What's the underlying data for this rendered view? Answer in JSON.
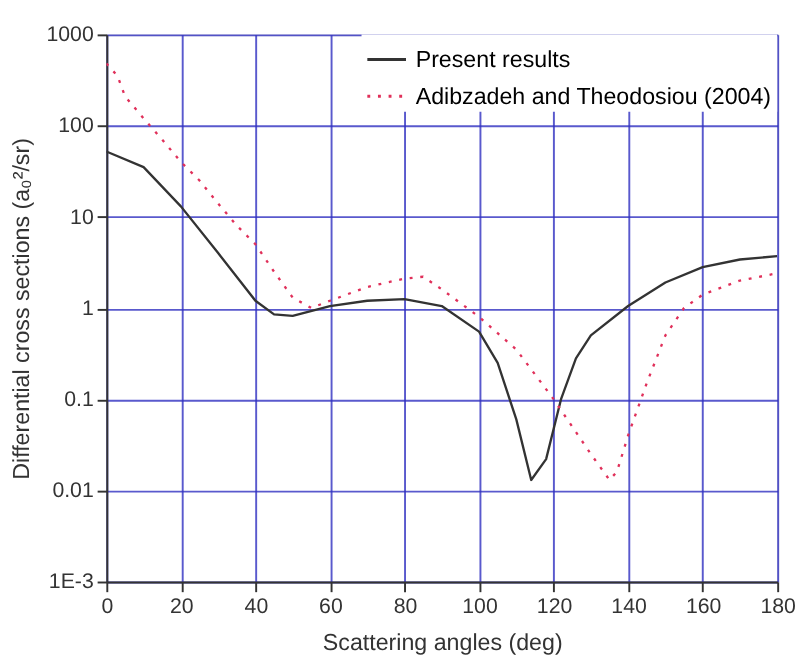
{
  "chart_data": {
    "type": "line",
    "xlabel": "Scattering angles (deg)",
    "ylabel": "Differential cross sections (a₀²/sr)",
    "log": "y",
    "grid": true,
    "legend": "top right",
    "xlim": [
      0,
      180
    ],
    "xticks": [
      0,
      20,
      40,
      60,
      80,
      100,
      120,
      140,
      160,
      180
    ],
    "ylim": [
      0.001,
      1000
    ],
    "yticks": [
      {
        "value": 0.001,
        "label": "1E-3"
      },
      0.01,
      0.1,
      1,
      10,
      100,
      1000
    ],
    "series": [
      {
        "name": "Present results",
        "color": "#333333",
        "line_style": "solid",
        "x": [
          0,
          10,
          20,
          30,
          40,
          45,
          50,
          60,
          70,
          80,
          90,
          100,
          105,
          110,
          114,
          118,
          122,
          126,
          130,
          140,
          150,
          160,
          170,
          180
        ],
        "values": [
          52,
          35,
          13,
          4,
          1.2,
          0.85,
          0.82,
          1.05,
          1.2,
          1.25,
          1.05,
          0.55,
          0.25,
          0.06,
          0.013,
          0.022,
          0.1,
          0.28,
          0.5,
          1.05,
          1.9,
          2.8,
          3.4,
          3.7
        ]
      },
      {
        "name": "Adibzadeh and Theodosiou (2004)",
        "color": "#e0305a",
        "line_style": "dotted",
        "x": [
          0,
          3,
          5,
          10,
          15,
          20,
          25,
          30,
          35,
          40,
          45,
          50,
          55,
          60,
          70,
          80,
          85,
          90,
          100,
          110,
          120,
          125,
          130,
          135,
          137,
          140,
          145,
          150,
          155,
          160,
          170,
          180
        ],
        "values": [
          480,
          350,
          210,
          120,
          70,
          40,
          25,
          14,
          8,
          5,
          2.5,
          1.3,
          1.0,
          1.2,
          1.7,
          2.1,
          2.2,
          1.6,
          0.8,
          0.35,
          0.1,
          0.05,
          0.025,
          0.013,
          0.016,
          0.04,
          0.15,
          0.5,
          1.0,
          1.4,
          2,
          2.4
        ]
      }
    ]
  }
}
